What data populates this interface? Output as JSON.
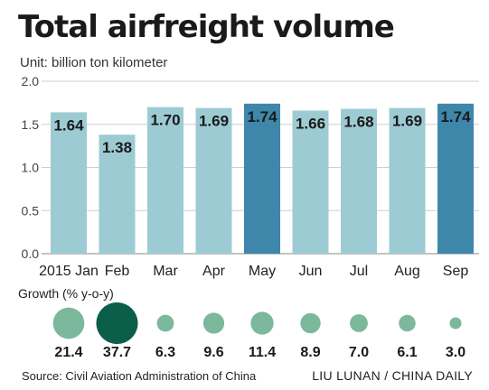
{
  "title": "Total airfreight volume",
  "subtitle": "Unit: billion ton kilometer",
  "growth_label": "Growth (% y-o-y)",
  "source": "Source: Civil Aviation Administration of China",
  "credit": "LIU LUNAN / CHINA DAILY",
  "chart_data": {
    "type": "bar",
    "title": "Total airfreight volume",
    "ylabel": "Unit: billion ton kilometer",
    "xlabel": "",
    "categories": [
      "2015 Jan",
      "Feb",
      "Mar",
      "Apr",
      "May",
      "Jun",
      "Jul",
      "Aug",
      "Sep"
    ],
    "values": [
      1.64,
      1.38,
      1.7,
      1.69,
      1.74,
      1.66,
      1.68,
      1.69,
      1.74
    ],
    "value_labels": [
      "1.64",
      "1.38",
      "1.70",
      "1.69",
      "1.74",
      "1.66",
      "1.68",
      "1.69",
      "1.74"
    ],
    "yticks": [
      "0.0",
      "0.5",
      "1.0",
      "1.5",
      "2.0"
    ],
    "ylim": [
      0,
      2.0
    ],
    "grid": true,
    "highlighted": [
      "May",
      "Sep"
    ],
    "growth": {
      "label": "Growth (% y-o-y)",
      "values": [
        21.4,
        37.7,
        6.3,
        9.6,
        11.4,
        8.9,
        7.0,
        6.1,
        3.0
      ],
      "value_labels": [
        "21.4",
        "37.7",
        "6.3",
        "9.6",
        "11.4",
        "8.9",
        "7.0",
        "6.1",
        "3.0"
      ],
      "highlighted": [
        "Feb"
      ]
    },
    "colors": {
      "bar": "#9dcbd3",
      "bar_highlight": "#3e87ab",
      "bubble": "#7bb89c",
      "bubble_highlight": "#0b5e4a",
      "grid": "#cfcfcf"
    }
  }
}
